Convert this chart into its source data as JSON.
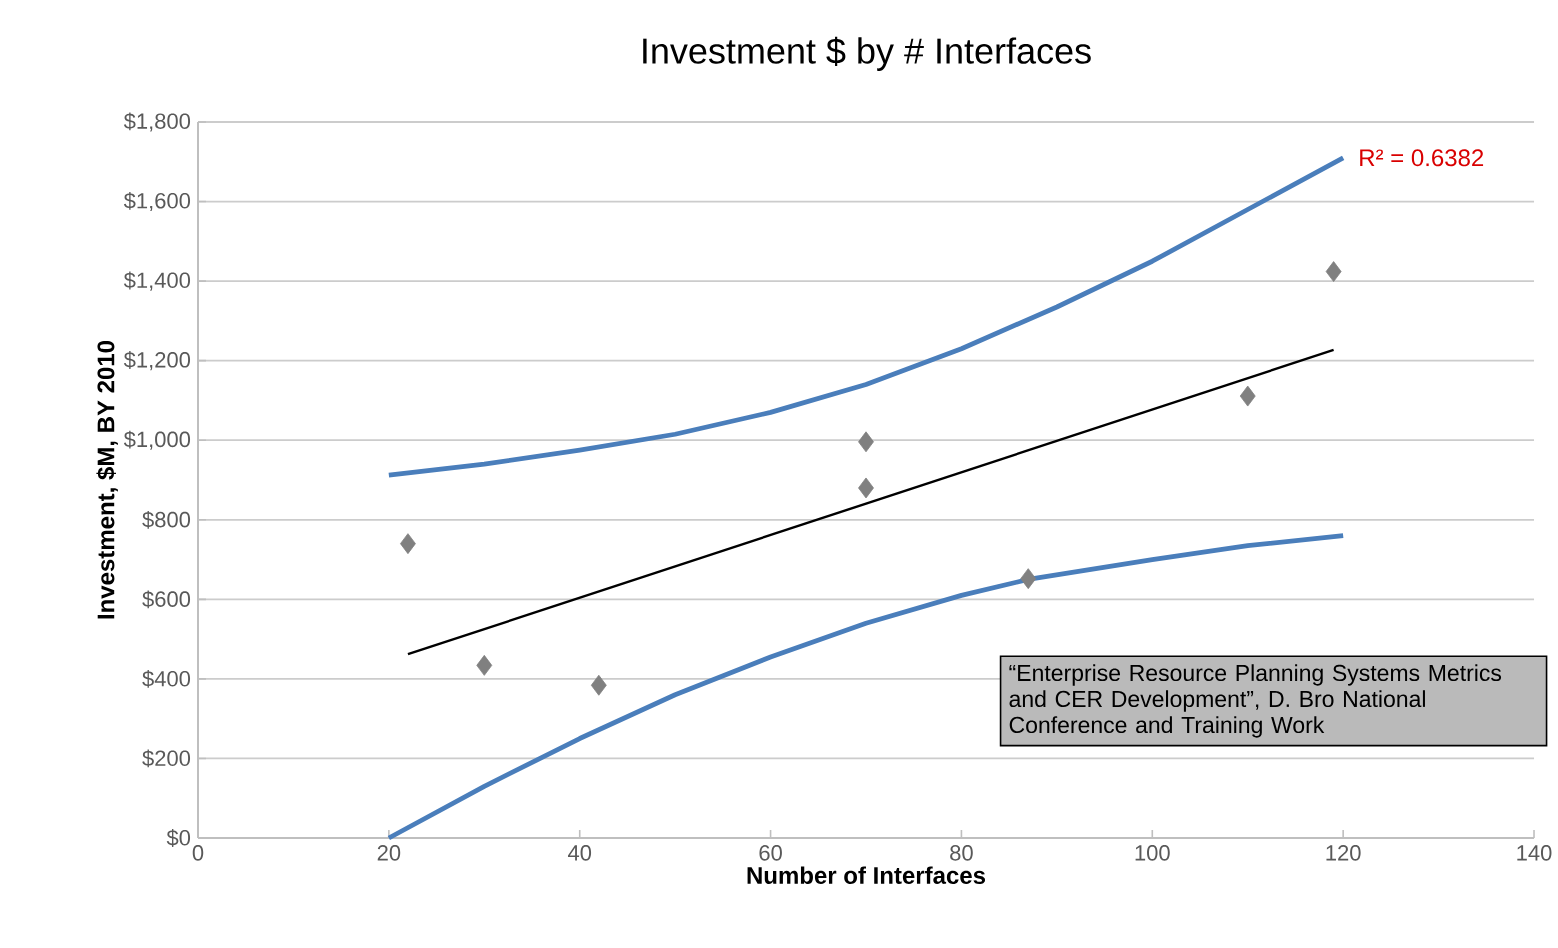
{
  "chart_data": {
    "type": "scatter",
    "title": "Investment $ by # Interfaces",
    "xlabel": "Number of Interfaces",
    "ylabel": "Investment, $M, BY 2010",
    "xlim": [
      0,
      140
    ],
    "xticks": [
      0,
      20,
      40,
      60,
      80,
      100,
      120,
      140
    ],
    "ylim": [
      0,
      1800
    ],
    "yticks": [
      {
        "value": 0,
        "label": "$0"
      },
      {
        "value": 200,
        "label": "$200"
      },
      {
        "value": 400,
        "label": "$400"
      },
      {
        "value": 600,
        "label": "$600"
      },
      {
        "value": 800,
        "label": "$800"
      },
      {
        "value": 1000,
        "label": "$1,000"
      },
      {
        "value": 1200,
        "label": "$1,200"
      },
      {
        "value": 1400,
        "label": "$1,400"
      },
      {
        "value": 1600,
        "label": "$1,600"
      },
      {
        "value": 1800,
        "label": "$1,800"
      }
    ],
    "grid": "y",
    "series": [
      {
        "color": "#808080",
        "marker": "diamond",
        "x": [
          22,
          30,
          42,
          70,
          70,
          87,
          110,
          119
        ],
        "values": [
          740,
          434,
          384,
          996,
          880,
          652,
          1111,
          1424
        ]
      },
      {
        "type": "line",
        "color": "#000000",
        "marker": "none",
        "x": [
          22,
          119
        ],
        "values": [
          462,
          1227
        ]
      },
      {
        "type": "line",
        "color": "#4a7ebb",
        "marker": "none",
        "x": [
          20,
          30,
          40,
          50,
          60,
          70,
          80,
          90,
          100,
          110,
          120
        ],
        "values": [
          912,
          940,
          975,
          1015,
          1070,
          1140,
          1230,
          1335,
          1450,
          1580,
          1710
        ]
      },
      {
        "type": "line",
        "color": "#4a7ebb",
        "marker": "none",
        "x": [
          20,
          30,
          40,
          50,
          60,
          70,
          80,
          87,
          100,
          110,
          120
        ],
        "values": [
          0,
          130,
          250,
          360,
          455,
          540,
          610,
          650,
          700,
          735,
          760
        ]
      }
    ],
    "annotations": [
      {
        "text": "R² = 0.6382",
        "x": 120,
        "y": 1710
      },
      "“Enterprise Resource Planning Systems Metrics and CER Development”, D. Bro National Conference and Training Work"
    ]
  }
}
